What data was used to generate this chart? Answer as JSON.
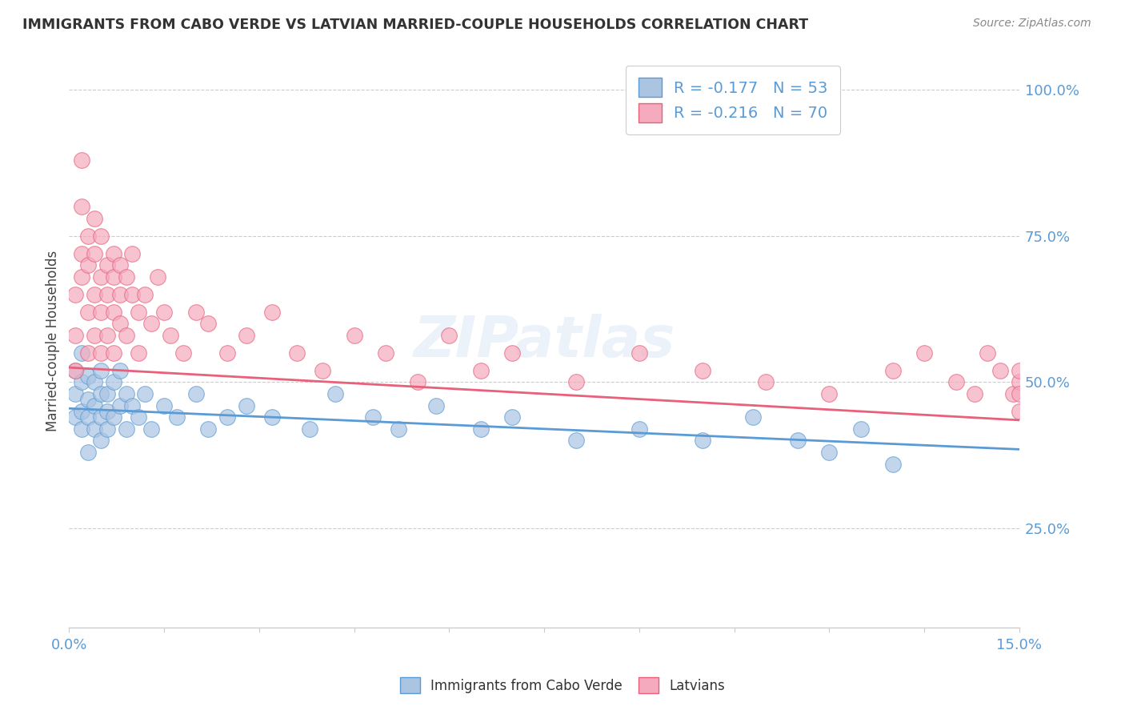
{
  "title": "IMMIGRANTS FROM CABO VERDE VS LATVIAN MARRIED-COUPLE HOUSEHOLDS CORRELATION CHART",
  "source": "Source: ZipAtlas.com",
  "R1": -0.177,
  "N1": 53,
  "R2": -0.216,
  "N2": 70,
  "xmin": 0.0,
  "xmax": 0.15,
  "ymin": 0.08,
  "ymax": 1.06,
  "yticks": [
    0.25,
    0.5,
    0.75,
    1.0
  ],
  "ytick_labels": [
    "25.0%",
    "50.0%",
    "75.0%",
    "100.0%"
  ],
  "series1_face": "#aac4e2",
  "series2_face": "#f5aabe",
  "line1_color": "#5b9bd5",
  "line2_color": "#e8607a",
  "cv_line_y0": 0.455,
  "cv_line_y1": 0.385,
  "lat_line_y0": 0.525,
  "lat_line_y1": 0.435,
  "cabo_verde_x": [
    0.001,
    0.001,
    0.001,
    0.002,
    0.002,
    0.002,
    0.002,
    0.003,
    0.003,
    0.003,
    0.003,
    0.004,
    0.004,
    0.004,
    0.005,
    0.005,
    0.005,
    0.005,
    0.006,
    0.006,
    0.006,
    0.007,
    0.007,
    0.008,
    0.008,
    0.009,
    0.009,
    0.01,
    0.011,
    0.012,
    0.013,
    0.015,
    0.017,
    0.02,
    0.022,
    0.025,
    0.028,
    0.032,
    0.038,
    0.042,
    0.048,
    0.052,
    0.058,
    0.065,
    0.07,
    0.08,
    0.09,
    0.1,
    0.108,
    0.115,
    0.12,
    0.125,
    0.13
  ],
  "cabo_verde_y": [
    0.48,
    0.44,
    0.52,
    0.5,
    0.45,
    0.42,
    0.55,
    0.47,
    0.51,
    0.44,
    0.38,
    0.5,
    0.46,
    0.42,
    0.52,
    0.48,
    0.44,
    0.4,
    0.48,
    0.45,
    0.42,
    0.5,
    0.44,
    0.52,
    0.46,
    0.48,
    0.42,
    0.46,
    0.44,
    0.48,
    0.42,
    0.46,
    0.44,
    0.48,
    0.42,
    0.44,
    0.46,
    0.44,
    0.42,
    0.48,
    0.44,
    0.42,
    0.46,
    0.42,
    0.44,
    0.4,
    0.42,
    0.4,
    0.44,
    0.4,
    0.38,
    0.42,
    0.36
  ],
  "latvian_x": [
    0.001,
    0.001,
    0.001,
    0.002,
    0.002,
    0.002,
    0.002,
    0.003,
    0.003,
    0.003,
    0.003,
    0.004,
    0.004,
    0.004,
    0.004,
    0.005,
    0.005,
    0.005,
    0.005,
    0.006,
    0.006,
    0.006,
    0.007,
    0.007,
    0.007,
    0.007,
    0.008,
    0.008,
    0.008,
    0.009,
    0.009,
    0.01,
    0.01,
    0.011,
    0.011,
    0.012,
    0.013,
    0.014,
    0.015,
    0.016,
    0.018,
    0.02,
    0.022,
    0.025,
    0.028,
    0.032,
    0.036,
    0.04,
    0.045,
    0.05,
    0.055,
    0.06,
    0.065,
    0.07,
    0.08,
    0.09,
    0.1,
    0.11,
    0.12,
    0.13,
    0.135,
    0.14,
    0.143,
    0.145,
    0.147,
    0.149,
    0.15,
    0.15,
    0.15,
    0.15
  ],
  "latvian_y": [
    0.52,
    0.58,
    0.65,
    0.72,
    0.68,
    0.8,
    0.88,
    0.7,
    0.75,
    0.62,
    0.55,
    0.78,
    0.65,
    0.72,
    0.58,
    0.68,
    0.75,
    0.62,
    0.55,
    0.7,
    0.65,
    0.58,
    0.72,
    0.68,
    0.62,
    0.55,
    0.7,
    0.65,
    0.6,
    0.68,
    0.58,
    0.65,
    0.72,
    0.62,
    0.55,
    0.65,
    0.6,
    0.68,
    0.62,
    0.58,
    0.55,
    0.62,
    0.6,
    0.55,
    0.58,
    0.62,
    0.55,
    0.52,
    0.58,
    0.55,
    0.5,
    0.58,
    0.52,
    0.55,
    0.5,
    0.55,
    0.52,
    0.5,
    0.48,
    0.52,
    0.55,
    0.5,
    0.48,
    0.55,
    0.52,
    0.48,
    0.5,
    0.48,
    0.52,
    0.45
  ]
}
